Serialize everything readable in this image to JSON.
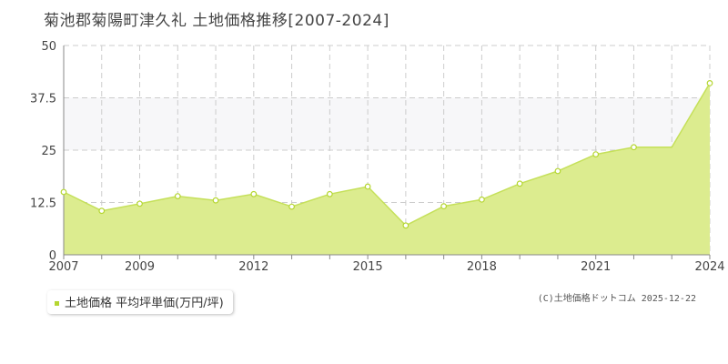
{
  "title": "菊池郡菊陽町津久礼 土地価格推移[2007-2024]",
  "legend": {
    "label": "土地価格 平均坪単価(万円/坪)"
  },
  "copyright": "(C)土地価格ドットコム 2025-12-22",
  "colors": {
    "fill": "#dcec8f",
    "line": "#c5e05a",
    "marker_stroke": "#b5d631",
    "band": "#f7f7f9",
    "grid": "#cccccc"
  },
  "chart_data": {
    "type": "area",
    "x": [
      2007,
      2008,
      2009,
      2010,
      2011,
      2012,
      2013,
      2014,
      2015,
      2016,
      2017,
      2018,
      2019,
      2020,
      2021,
      2022,
      2023,
      2024
    ],
    "series": [
      {
        "name": "土地価格 平均坪単価(万円/坪)",
        "values": [
          15,
          10.5,
          12.2,
          14,
          13,
          14.5,
          11.5,
          14.5,
          16.3,
          7,
          11.6,
          13.2,
          17,
          20,
          24,
          25.7,
          25.7,
          41
        ]
      }
    ],
    "markers_at": [
      2007,
      2008,
      2009,
      2010,
      2011,
      2012,
      2013,
      2014,
      2015,
      2016,
      2017,
      2018,
      2019,
      2020,
      2021,
      2022,
      2024
    ],
    "xticks": [
      2007,
      2009,
      2012,
      2015,
      2018,
      2021,
      2024
    ],
    "yticks": [
      0,
      12.5,
      25,
      37.5,
      50
    ],
    "ytick_labels": [
      "0",
      "12.5",
      "25",
      "37.5",
      "50"
    ],
    "xlim": [
      2007,
      2024
    ],
    "ylim": [
      0,
      50
    ],
    "highlight_band": [
      25,
      37.5
    ],
    "grid": true
  }
}
